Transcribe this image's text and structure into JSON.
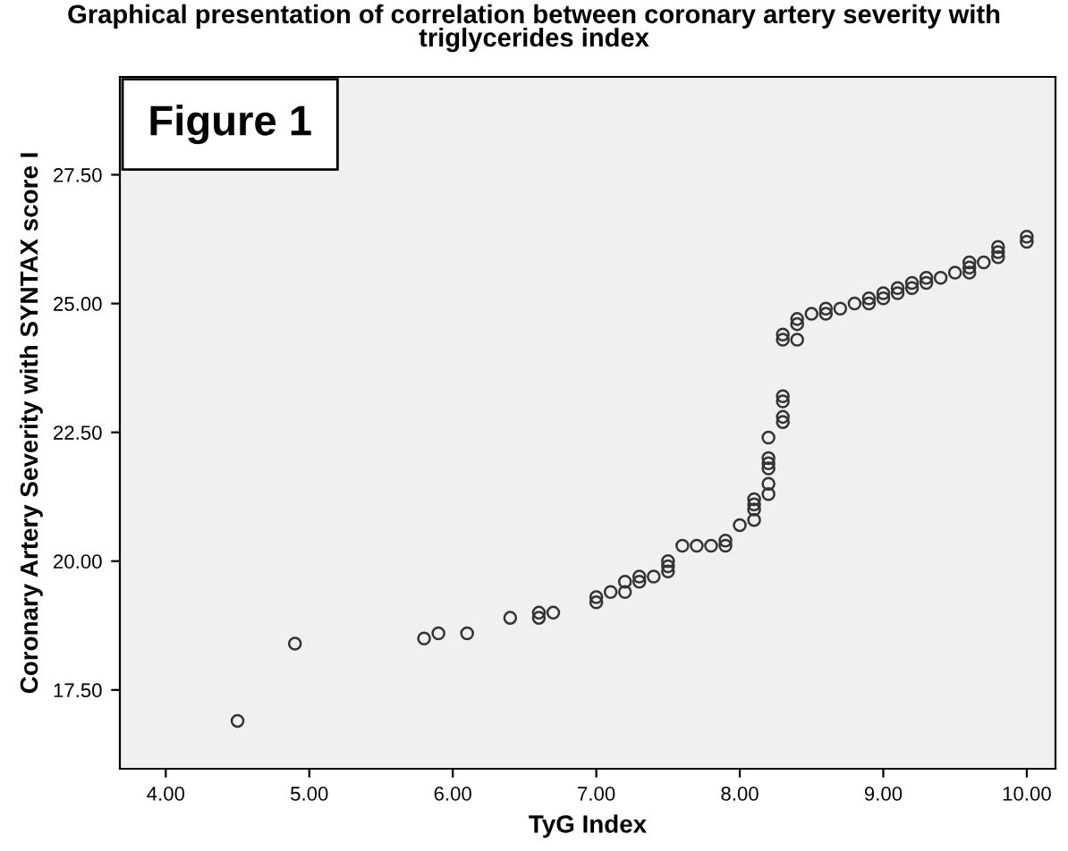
{
  "chart_data": {
    "type": "scatter",
    "title": "Graphical presentation of correlation between coronary artery severity with\ntriglycerides index",
    "xlabel": "TyG Index",
    "ylabel": "Coronary Artery Severity with SYNTAX score I",
    "annotations": [
      "Figure 1"
    ],
    "marker": "circle",
    "grid": false,
    "legend": false,
    "xlim": [
      3.68,
      10.2
    ],
    "ylim": [
      15.97,
      29.4
    ],
    "xticks": [
      {
        "value": 4,
        "label": "4.00"
      },
      {
        "value": 5,
        "label": "5.00"
      },
      {
        "value": 6,
        "label": "6.00"
      },
      {
        "value": 7,
        "label": "7.00"
      },
      {
        "value": 8,
        "label": "8.00"
      },
      {
        "value": 9,
        "label": "9.00"
      },
      {
        "value": 10,
        "label": "10.00"
      }
    ],
    "yticks": [
      {
        "value": 17.5,
        "label": "17.50"
      },
      {
        "value": 20,
        "label": "20.00"
      },
      {
        "value": 22.5,
        "label": "22.50"
      },
      {
        "value": 25,
        "label": "25.00"
      },
      {
        "value": 27.5,
        "label": "27.50"
      }
    ],
    "series": [
      {
        "color": "#333333",
        "x": [
          4.5,
          4.9,
          5.8,
          5.9,
          6.1,
          6.4,
          6.6,
          6.6,
          6.7,
          7.0,
          7.0,
          7.1,
          7.2,
          7.2,
          7.3,
          7.3,
          7.4,
          7.5,
          7.5,
          7.5,
          7.6,
          7.7,
          7.8,
          7.9,
          7.9,
          8.0,
          8.1,
          8.1,
          8.1,
          8.1,
          8.2,
          8.2,
          8.2,
          8.2,
          8.2,
          8.2,
          8.3,
          8.3,
          8.3,
          8.3,
          8.3,
          8.3,
          8.4,
          8.4,
          8.4,
          8.5,
          8.6,
          8.6,
          8.7,
          8.8,
          8.9,
          8.9,
          9.0,
          9.0,
          9.1,
          9.1,
          9.2,
          9.2,
          9.3,
          9.3,
          9.4,
          9.5,
          9.6,
          9.6,
          9.6,
          9.7,
          9.8,
          9.8,
          9.8,
          10.0,
          10.0
        ],
        "values": [
          16.9,
          18.4,
          18.5,
          18.6,
          18.6,
          18.9,
          18.9,
          19.0,
          19.0,
          19.2,
          19.3,
          19.4,
          19.4,
          19.6,
          19.6,
          19.7,
          19.7,
          19.8,
          19.9,
          20.0,
          20.3,
          20.3,
          20.3,
          20.3,
          20.4,
          20.7,
          20.8,
          21.0,
          21.1,
          21.2,
          21.3,
          21.5,
          21.8,
          21.9,
          22.0,
          22.4,
          22.7,
          22.8,
          23.1,
          23.2,
          24.3,
          24.4,
          24.3,
          24.6,
          24.7,
          24.8,
          24.8,
          24.9,
          24.9,
          25.0,
          25.0,
          25.1,
          25.1,
          25.2,
          25.2,
          25.3,
          25.3,
          25.4,
          25.4,
          25.5,
          25.5,
          25.6,
          25.6,
          25.7,
          25.8,
          25.8,
          25.9,
          26.0,
          26.1,
          26.2,
          26.3
        ]
      }
    ]
  }
}
